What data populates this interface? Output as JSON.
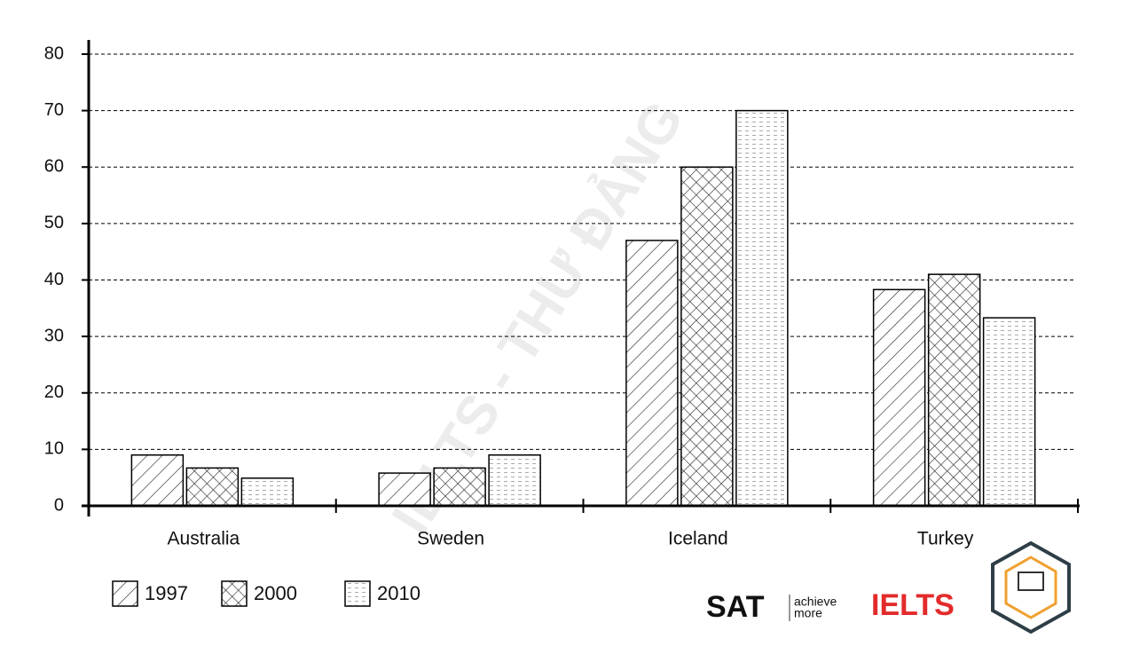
{
  "chart_data": {
    "type": "bar",
    "categories": [
      "Australia",
      "Sweden",
      "Iceland",
      "Turkey"
    ],
    "series": [
      {
        "name": "1997",
        "color": "#000000",
        "pattern": "diagonal",
        "values": [
          9,
          5.8,
          47,
          38.3
        ]
      },
      {
        "name": "2000",
        "color": "#000000",
        "pattern": "crosshatch",
        "values": [
          6.7,
          6.7,
          60,
          41
        ]
      },
      {
        "name": "2010",
        "color": "#000000",
        "pattern": "dashes",
        "values": [
          4.9,
          9,
          70,
          33.3
        ]
      }
    ],
    "ylim": [
      0,
      80
    ],
    "yticks": [
      0,
      10,
      20,
      30,
      40,
      50,
      60,
      70,
      80
    ],
    "grid": true,
    "legend": "bottom-left",
    "watermark": "IELTS - THƯ ĐẢNG",
    "logos": [
      "SAT",
      "achieve",
      "more",
      "IELTS"
    ]
  }
}
